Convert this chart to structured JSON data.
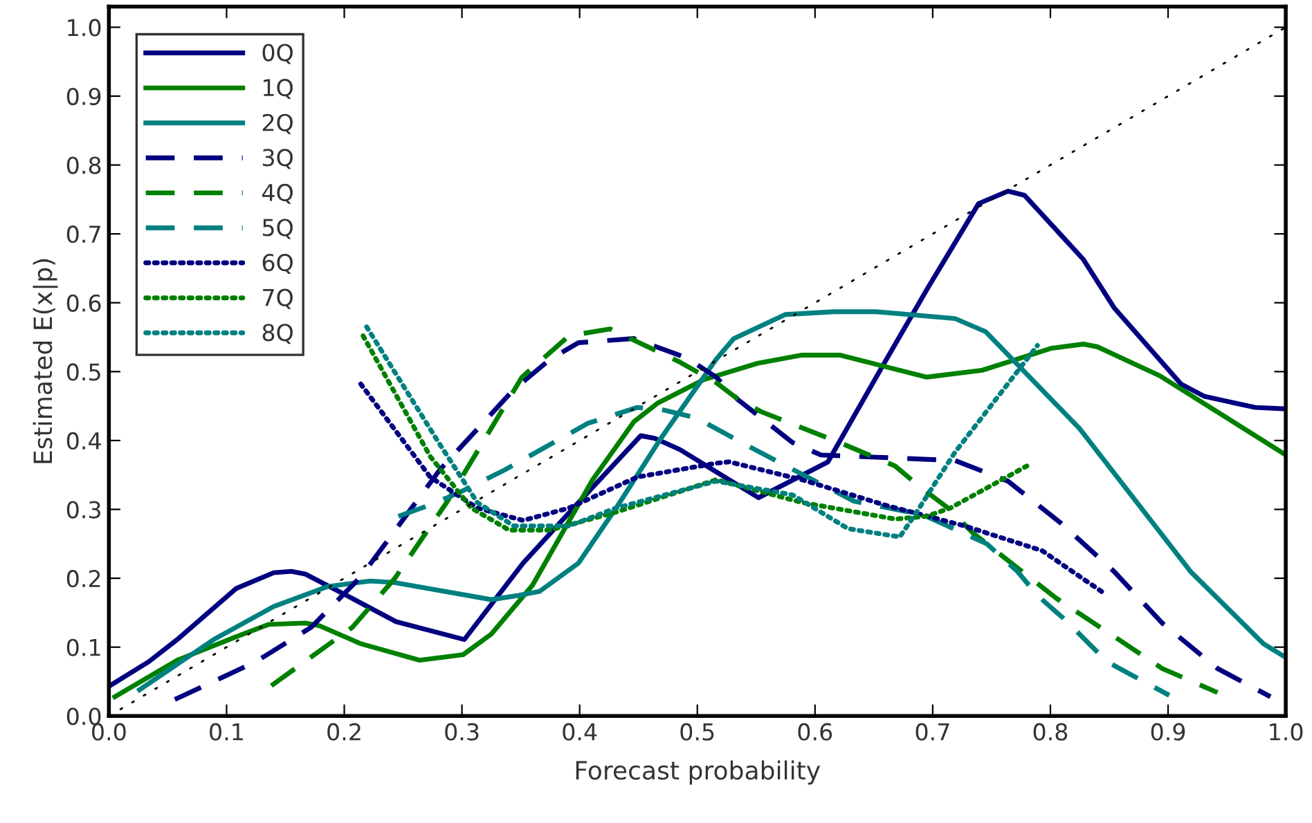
{
  "chart_data": {
    "type": "line",
    "xlabel": "Forecast probability",
    "ylabel": "Estimated E(x|p)",
    "xlim": [
      0,
      1
    ],
    "ylim": [
      0,
      1.03
    ],
    "xticks": [
      {
        "value": 0,
        "label": "0.0"
      },
      {
        "value": 0.1,
        "label": "0.1"
      },
      {
        "value": 0.2,
        "label": "0.2"
      },
      {
        "value": 0.3,
        "label": "0.3"
      },
      {
        "value": 0.4,
        "label": "0.4"
      },
      {
        "value": 0.5,
        "label": "0.5"
      },
      {
        "value": 0.6,
        "label": "0.6"
      },
      {
        "value": 0.7,
        "label": "0.7"
      },
      {
        "value": 0.8,
        "label": "0.8"
      },
      {
        "value": 0.9,
        "label": "0.9"
      },
      {
        "value": 1,
        "label": "1.0"
      }
    ],
    "yticks": [
      {
        "value": 0,
        "label": "0.0"
      },
      {
        "value": 0.1,
        "label": "0.1"
      },
      {
        "value": 0.2,
        "label": "0.2"
      },
      {
        "value": 0.3,
        "label": "0.3"
      },
      {
        "value": 0.4,
        "label": "0.4"
      },
      {
        "value": 0.5,
        "label": "0.5"
      },
      {
        "value": 0.6,
        "label": "0.6"
      },
      {
        "value": 0.7,
        "label": "0.7"
      },
      {
        "value": 0.8,
        "label": "0.8"
      },
      {
        "value": 0.9,
        "label": "0.9"
      },
      {
        "value": 1,
        "label": "1.0"
      }
    ],
    "grid": false,
    "legend": "top left",
    "marker": "none",
    "series": [
      {
        "name": "0Q",
        "color": "#000080",
        "line_style": "solid",
        "x": [
          0.0,
          0.034,
          0.058,
          0.108,
          0.14,
          0.155,
          0.167,
          0.202,
          0.244,
          0.302,
          0.352,
          0.399,
          0.452,
          0.464,
          0.485,
          0.552,
          0.611,
          0.656,
          0.695,
          0.739,
          0.764,
          0.778,
          0.828,
          0.854,
          0.911,
          0.931,
          0.974,
          1.0
        ],
        "values": [
          0.043,
          0.079,
          0.111,
          0.185,
          0.208,
          0.21,
          0.206,
          0.175,
          0.137,
          0.111,
          0.222,
          0.31,
          0.407,
          0.403,
          0.387,
          0.317,
          0.369,
          0.504,
          0.619,
          0.744,
          0.762,
          0.756,
          0.663,
          0.593,
          0.482,
          0.464,
          0.448,
          0.446
        ]
      },
      {
        "name": "1Q",
        "color": "#008000",
        "line_style": "solid",
        "x": [
          0.005,
          0.058,
          0.108,
          0.136,
          0.167,
          0.179,
          0.214,
          0.264,
          0.301,
          0.325,
          0.36,
          0.411,
          0.446,
          0.466,
          0.505,
          0.551,
          0.589,
          0.621,
          0.695,
          0.742,
          0.801,
          0.828,
          0.84,
          0.893,
          1.0
        ],
        "values": [
          0.028,
          0.081,
          0.115,
          0.133,
          0.135,
          0.131,
          0.105,
          0.081,
          0.089,
          0.119,
          0.19,
          0.343,
          0.427,
          0.454,
          0.488,
          0.512,
          0.524,
          0.524,
          0.492,
          0.502,
          0.534,
          0.54,
          0.536,
          0.494,
          0.379
        ]
      },
      {
        "name": "2Q",
        "color": "#008080",
        "line_style": "solid",
        "x": [
          0.026,
          0.089,
          0.14,
          0.186,
          0.222,
          0.242,
          0.325,
          0.348,
          0.366,
          0.399,
          0.431,
          0.469,
          0.516,
          0.531,
          0.575,
          0.616,
          0.652,
          0.719,
          0.745,
          0.825,
          0.864,
          0.919,
          0.981,
          1.0
        ],
        "values": [
          0.038,
          0.111,
          0.159,
          0.188,
          0.196,
          0.194,
          0.169,
          0.175,
          0.181,
          0.222,
          0.302,
          0.403,
          0.518,
          0.548,
          0.583,
          0.587,
          0.587,
          0.577,
          0.558,
          0.417,
          0.331,
          0.21,
          0.105,
          0.085
        ]
      },
      {
        "name": "3Q",
        "color": "#000080",
        "line_style": "dashed",
        "x": [
          0.056,
          0.125,
          0.172,
          0.214,
          0.281,
          0.344,
          0.375,
          0.399,
          0.446,
          0.491,
          0.516,
          0.534,
          0.581,
          0.605,
          0.719,
          0.764,
          0.809,
          0.854,
          0.895,
          0.942,
          0.987
        ],
        "values": [
          0.024,
          0.079,
          0.129,
          0.202,
          0.357,
          0.474,
          0.518,
          0.542,
          0.548,
          0.52,
          0.492,
          0.46,
          0.397,
          0.379,
          0.371,
          0.341,
          0.28,
          0.21,
          0.135,
          0.069,
          0.028
        ]
      },
      {
        "name": "4Q",
        "color": "#008000",
        "line_style": "dashed",
        "x": [
          0.138,
          0.207,
          0.243,
          0.287,
          0.351,
          0.391,
          0.426,
          0.485,
          0.516,
          0.533,
          0.554,
          0.621,
          0.668,
          0.689,
          0.713,
          0.734,
          0.805,
          0.851,
          0.895,
          0.942
        ],
        "values": [
          0.044,
          0.129,
          0.2,
          0.31,
          0.492,
          0.552,
          0.562,
          0.514,
          0.484,
          0.462,
          0.442,
          0.397,
          0.363,
          0.333,
          0.302,
          0.266,
          0.171,
          0.119,
          0.069,
          0.034
        ]
      },
      {
        "name": "5Q",
        "color": "#008080",
        "line_style": "dashed",
        "x": [
          0.246,
          0.269,
          0.296,
          0.336,
          0.407,
          0.449,
          0.472,
          0.499,
          0.542,
          0.589,
          0.633,
          0.692,
          0.746,
          0.772,
          0.789,
          0.813,
          0.848,
          0.901
        ],
        "values": [
          0.29,
          0.304,
          0.323,
          0.357,
          0.425,
          0.448,
          0.444,
          0.433,
          0.393,
          0.351,
          0.312,
          0.292,
          0.25,
          0.21,
          0.175,
          0.139,
          0.079,
          0.03
        ]
      },
      {
        "name": "6Q",
        "color": "#000080",
        "line_style": "dotted",
        "x": [
          0.214,
          0.273,
          0.313,
          0.352,
          0.391,
          0.449,
          0.516,
          0.527,
          0.589,
          0.66,
          0.727,
          0.793,
          0.845
        ],
        "values": [
          0.482,
          0.347,
          0.302,
          0.284,
          0.302,
          0.347,
          0.367,
          0.369,
          0.343,
          0.306,
          0.276,
          0.24,
          0.179
        ]
      },
      {
        "name": "7Q",
        "color": "#008000",
        "line_style": "dotted",
        "x": [
          0.216,
          0.273,
          0.308,
          0.34,
          0.375,
          0.431,
          0.516,
          0.589,
          0.668,
          0.695,
          0.715,
          0.78
        ],
        "values": [
          0.552,
          0.377,
          0.302,
          0.27,
          0.27,
          0.296,
          0.343,
          0.31,
          0.286,
          0.29,
          0.302,
          0.363
        ]
      },
      {
        "name": "8Q",
        "color": "#008080",
        "line_style": "dotted",
        "x": [
          0.219,
          0.278,
          0.313,
          0.344,
          0.391,
          0.431,
          0.516,
          0.581,
          0.628,
          0.672,
          0.684,
          0.719,
          0.789
        ],
        "values": [
          0.565,
          0.403,
          0.31,
          0.276,
          0.276,
          0.302,
          0.341,
          0.321,
          0.272,
          0.26,
          0.29,
          0.383,
          0.538
        ]
      },
      {
        "color": "#000000",
        "line_style": "dotted",
        "x": [
          0,
          1
        ],
        "values": [
          0,
          1
        ]
      }
    ]
  }
}
